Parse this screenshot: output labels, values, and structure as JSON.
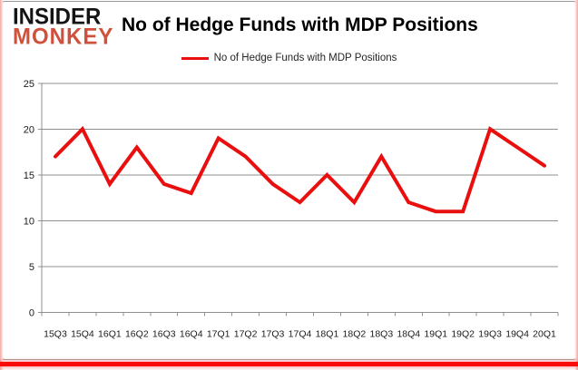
{
  "logo": {
    "line1": "INSIDER",
    "line2": "MONKEY"
  },
  "header": {
    "title": "No of Hedge Funds with MDP Positions"
  },
  "legend": {
    "label": "No of Hedge Funds with MDP Positions"
  },
  "colors": {
    "series_red": "#e90f0f",
    "gridline_gray": "#8f8f8f",
    "logo_red": "#d0503b",
    "bottom_bar_red": "#fb0b07"
  },
  "chart_data": {
    "type": "line",
    "title": "No of Hedge Funds with MDP Positions",
    "categories": [
      "15Q3",
      "15Q4",
      "16Q1",
      "16Q2",
      "16Q3",
      "16Q4",
      "17Q1",
      "17Q2",
      "17Q3",
      "17Q4",
      "18Q1",
      "18Q2",
      "18Q3",
      "18Q4",
      "19Q1",
      "19Q2",
      "19Q3",
      "19Q4",
      "20Q1"
    ],
    "series": [
      {
        "name": "No of Hedge Funds with MDP Positions",
        "color": "#e90f0f",
        "values": [
          17,
          20,
          14,
          18,
          14,
          13,
          19,
          17,
          14,
          12,
          15,
          12,
          17,
          12,
          11,
          11,
          20,
          18,
          16
        ]
      }
    ],
    "xlabel": "",
    "ylabel": "",
    "ylim": [
      0,
      25
    ],
    "yticks": [
      0,
      5,
      10,
      15,
      20,
      25
    ],
    "grid": "horizontal",
    "legend_position": "top-center"
  }
}
